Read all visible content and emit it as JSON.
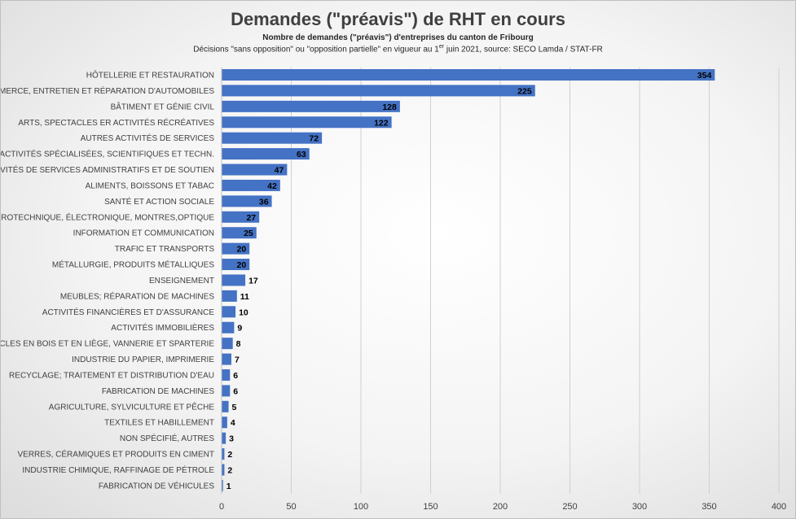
{
  "chart_data": {
    "type": "bar",
    "orientation": "horizontal",
    "title": "Demandes (\"préavis\") de RHT en cours",
    "subtitle": "Nombre de demandes (\"préavis\") d'entreprises du canton de Fribourg",
    "note": {
      "before": "Décisions \"sans opposition\" ou \"opposition partielle\" en vigueur au 1",
      "superscript": "er",
      "after": " juin 2021, source: SECO Lamda / STAT-FR"
    },
    "categories": [
      "HÔTELLERIE ET RESTAURATION",
      "COMMERCE, ENTRETIEN ET RÉPARATION D'AUTOMOBILES",
      "BÂTIMENT ET GÉNIE CIVIL",
      "ARTS, SPECTACLES ER ACTIVITÉS RÉCRÉATIVES",
      "AUTRES ACTIVITÉS DE SERVICES",
      "ACTIVITÉS SPÉCIALISÉES, SCIENTIFIQUES ET TECHN.",
      "ACTIVITÉS DE SERVICES ADMINISTRATIFS ET DE SOUTIEN",
      "ALIMENTS, BOISSONS ET TABAC",
      "SANTÉ ET ACTION SOCIALE",
      "ELECTROTECHNIQUE, ÉLECTRONIQUE, MONTRES,OPTIQUE",
      "INFORMATION ET COMMUNICATION",
      "TRAFIC ET TRANSPORTS",
      "MÉTALLURGIE, PRODUITS MÉTALLIQUES",
      "ENSEIGNEMENT",
      "MEUBLES; RÉPARATION DE MACHINES",
      "ACTIVITÉS FINANCIÈRES ET D'ASSURANCE",
      "ACTIVITÉS IMMOBILIÈRES",
      "ARTICLES EN BOIS ET EN LIÈGE, VANNERIE ET SPARTERIE",
      "INDUSTRIE DU PAPIER, IMPRIMERIE",
      "RECYCLAGE; TRAITEMENT ET DISTRIBUTION D'EAU",
      "FABRICATION DE MACHINES",
      "AGRICULTURE, SYLVICULTURE ET PÊCHE",
      "TEXTILES ET HABILLEMENT",
      "NON SPÉCIFIÉ, AUTRES",
      "VERRES, CÉRAMIQUES ET PRODUITS EN CIMENT",
      "INDUSTRIE CHIMIQUE, RAFFINAGE DE PÉTROLE",
      "FABRICATION DE VÉHICULES"
    ],
    "values": [
      354,
      225,
      128,
      122,
      72,
      63,
      47,
      42,
      36,
      27,
      25,
      20,
      20,
      17,
      11,
      10,
      9,
      8,
      7,
      6,
      6,
      5,
      4,
      3,
      2,
      2,
      1
    ],
    "xlim": [
      0,
      400
    ],
    "xticks": [
      0,
      50,
      100,
      150,
      200,
      250,
      300,
      350,
      400
    ],
    "grid": "vertical",
    "legend": "none",
    "bar_color": "#4472C4"
  }
}
